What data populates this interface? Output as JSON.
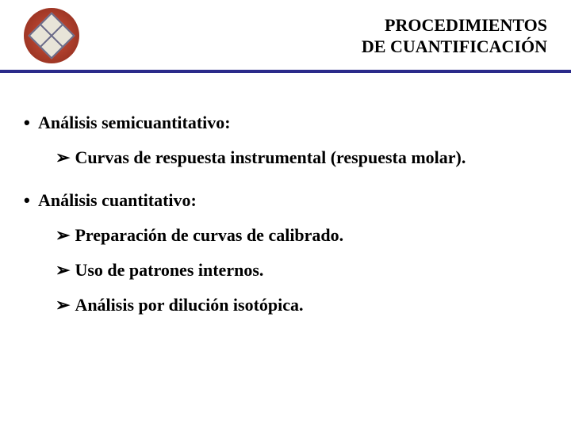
{
  "header": {
    "title_line1": "PROCEDIMIENTOS",
    "title_line2": "DE CUANTIFICACIÓN"
  },
  "sections": [
    {
      "heading": "Análisis semicuantitativo:",
      "items": [
        "Curvas de respuesta instrumental (respuesta molar)."
      ]
    },
    {
      "heading": "Análisis cuantitativo:",
      "items": [
        "Preparación de curvas de calibrado.",
        "Uso de patrones internos.",
        "Análisis por dilución isotópica."
      ]
    }
  ],
  "colors": {
    "header_border": "#2a2a8a",
    "logo_outer": "#c74a3a",
    "text": "#000000",
    "background": "#ffffff"
  },
  "fonts": {
    "title_size": 22,
    "body_size": 22,
    "weight": "bold"
  },
  "symbols": {
    "bullet": "•",
    "arrow": "➢"
  }
}
